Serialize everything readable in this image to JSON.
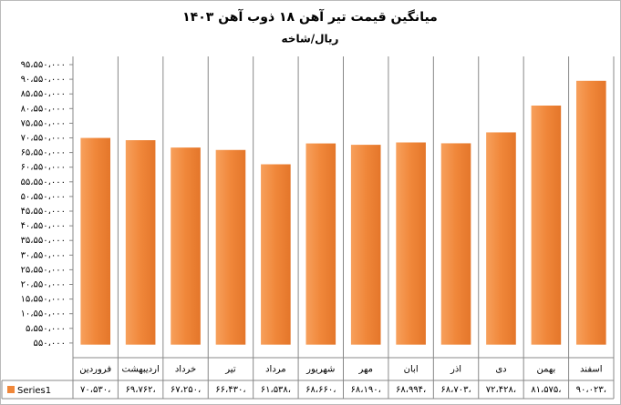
{
  "chart_data": {
    "type": "bar",
    "title": "میانگین قیمت تیر آهن ۱۸ ذوب آهن ۱۴۰۳",
    "subtitle": "ریال/شاخه",
    "categories": [
      "فروردین",
      "اردیبهشت",
      "خرداد",
      "تیر",
      "مرداد",
      "شهریور",
      "مهر",
      "ابان",
      "اذر",
      "دی",
      "بهمن",
      "اسفند"
    ],
    "series": [
      {
        "name": "Series1",
        "color": "#f0873a",
        "values": [
          70530000,
          69762000,
          67250000,
          66430000,
          61538000,
          68660000,
          68190000,
          68994000,
          68703000,
          72428000,
          81575000,
          90023000
        ],
        "value_labels": [
          "۷۰،۵۳۰،",
          "۶۹،۷۶۲،",
          "۶۷،۲۵۰،",
          "۶۶،۴۳۰،",
          "۶۱،۵۳۸،",
          "۶۸،۶۶۰،",
          "۶۸،۱۹۰،",
          "۶۸،۹۹۴،",
          "۶۸،۷۰۳،",
          "۷۲،۴۲۸،",
          "۸۱،۵۷۵،",
          "۹۰،۰۲۳،"
        ]
      }
    ],
    "ylim": [
      -4450000,
      95550000
    ],
    "yticks": [
      {
        "value": 550000,
        "label": "۵۵۰،۰۰۰"
      },
      {
        "value": 5550000,
        "label": "۵،۵۵۰،۰۰۰"
      },
      {
        "value": 10550000,
        "label": "۱۰،۵۵۰،۰۰۰"
      },
      {
        "value": 15550000,
        "label": "۱۵،۵۵۰،۰۰۰"
      },
      {
        "value": 20550000,
        "label": "۲۰،۵۵۰،۰۰۰"
      },
      {
        "value": 25550000,
        "label": "۲۵،۵۵۰،۰۰۰"
      },
      {
        "value": 30550000,
        "label": "۳۰،۵۵۰،۰۰۰"
      },
      {
        "value": 35550000,
        "label": "۳۵،۵۵۰،۰۰۰"
      },
      {
        "value": 40550000,
        "label": "۴۰،۵۵۰،۰۰۰"
      },
      {
        "value": 45550000,
        "label": "۴۵،۵۵۰،۰۰۰"
      },
      {
        "value": 50550000,
        "label": "۵۰،۵۵۰،۰۰۰"
      },
      {
        "value": 55550000,
        "label": "۵۵،۵۵۰،۰۰۰"
      },
      {
        "value": 60550000,
        "label": "۶۰،۵۵۰،۰۰۰"
      },
      {
        "value": 65550000,
        "label": "۶۵،۵۵۰،۰۰۰"
      },
      {
        "value": 70550000,
        "label": "۷۰،۵۵۰،۰۰۰"
      },
      {
        "value": 75550000,
        "label": "۷۵،۵۵۰،۰۰۰"
      },
      {
        "value": 80550000,
        "label": "۸۰،۵۵۰،۰۰۰"
      },
      {
        "value": 85550000,
        "label": "۸۵،۵۵۰،۰۰۰"
      },
      {
        "value": 90550000,
        "label": "۹۰،۵۵۰،۰۰۰"
      },
      {
        "value": 95550000,
        "label": "۹۵،۵۵۰،۰۰۰"
      }
    ],
    "grid": false
  }
}
